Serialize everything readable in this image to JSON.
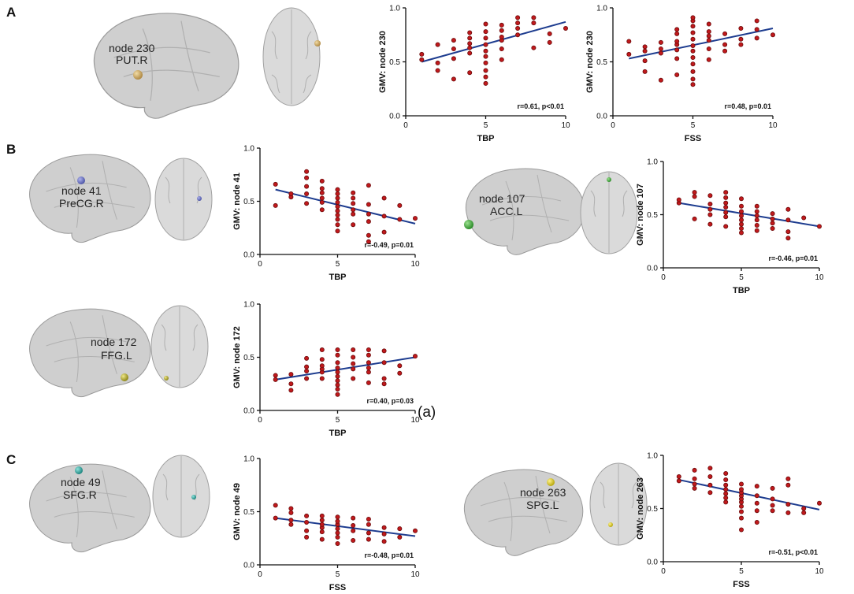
{
  "panels": {
    "A": "A",
    "B": "B",
    "C": "C"
  },
  "subfigure_label": "(a)",
  "brain_figures": [
    {
      "id": "b230",
      "node": "node 230",
      "region": "PUT.R",
      "color": "#d2b070"
    },
    {
      "id": "b41",
      "node": "node 41",
      "region": "PreCG.R",
      "color": "#7f86cc"
    },
    {
      "id": "b107",
      "node": "node 107",
      "region": "ACC.L",
      "color": "#55b24f"
    },
    {
      "id": "b172",
      "node": "node 172",
      "region": "FFG.L",
      "color": "#c9bf3a"
    },
    {
      "id": "b49",
      "node": "node 49",
      "region": "SFG.R",
      "color": "#3fb3ad"
    },
    {
      "id": "b263",
      "node": "node 263",
      "region": "SPG.L",
      "color": "#e2d42d"
    }
  ],
  "colors": {
    "point": "#c0191c",
    "fit": "#1d3c8f"
  },
  "chart_data": [
    {
      "id": "c1",
      "type": "scatter",
      "panel": "A",
      "xlabel": "TBP",
      "ylabel": "GMV: node 230",
      "xlim": [
        0,
        10
      ],
      "ylim": [
        0,
        1
      ],
      "xticks": [
        0,
        5,
        10
      ],
      "yticks": [
        0.0,
        0.5,
        1.0
      ],
      "stat": "r=0.61, p<0.01",
      "fit": [
        [
          1,
          0.5
        ],
        [
          10,
          0.87
        ]
      ],
      "points": [
        [
          1,
          0.52
        ],
        [
          1,
          0.57
        ],
        [
          2,
          0.42
        ],
        [
          2,
          0.49
        ],
        [
          2,
          0.66
        ],
        [
          3,
          0.34
        ],
        [
          3,
          0.53
        ],
        [
          3,
          0.62
        ],
        [
          3,
          0.7
        ],
        [
          4,
          0.4
        ],
        [
          4,
          0.58
        ],
        [
          4,
          0.63
        ],
        [
          4,
          0.67
        ],
        [
          4,
          0.72
        ],
        [
          4,
          0.77
        ],
        [
          5,
          0.3
        ],
        [
          5,
          0.36
        ],
        [
          5,
          0.42
        ],
        [
          5,
          0.49
        ],
        [
          5,
          0.55
        ],
        [
          5,
          0.6
        ],
        [
          5,
          0.66
        ],
        [
          5,
          0.72
        ],
        [
          5,
          0.78
        ],
        [
          5,
          0.85
        ],
        [
          6,
          0.52
        ],
        [
          6,
          0.62
        ],
        [
          6,
          0.7
        ],
        [
          6,
          0.73
        ],
        [
          6,
          0.79
        ],
        [
          6,
          0.84
        ],
        [
          7,
          0.75
        ],
        [
          7,
          0.81
        ],
        [
          7,
          0.86
        ],
        [
          7,
          0.91
        ],
        [
          8,
          0.63
        ],
        [
          8,
          0.86
        ],
        [
          8,
          0.91
        ],
        [
          9,
          0.68
        ],
        [
          9,
          0.76
        ],
        [
          10,
          0.81
        ]
      ]
    },
    {
      "id": "c2",
      "type": "scatter",
      "panel": "A",
      "xlabel": "FSS",
      "ylabel": "GMV: node 230",
      "xlim": [
        0,
        10
      ],
      "ylim": [
        0,
        1
      ],
      "xticks": [
        0,
        5,
        10
      ],
      "yticks": [
        0.0,
        0.5,
        1.0
      ],
      "stat": "r=0.48, p=0.01",
      "fit": [
        [
          1,
          0.53
        ],
        [
          10,
          0.81
        ]
      ],
      "points": [
        [
          1,
          0.57
        ],
        [
          1,
          0.69
        ],
        [
          2,
          0.41
        ],
        [
          2,
          0.51
        ],
        [
          2,
          0.6
        ],
        [
          2,
          0.64
        ],
        [
          3,
          0.33
        ],
        [
          3,
          0.58
        ],
        [
          3,
          0.62
        ],
        [
          3,
          0.68
        ],
        [
          4,
          0.38
        ],
        [
          4,
          0.53
        ],
        [
          4,
          0.61
        ],
        [
          4,
          0.66
        ],
        [
          4,
          0.69
        ],
        [
          4,
          0.76
        ],
        [
          4,
          0.8
        ],
        [
          5,
          0.29
        ],
        [
          5,
          0.34
        ],
        [
          5,
          0.41
        ],
        [
          5,
          0.48
        ],
        [
          5,
          0.54
        ],
        [
          5,
          0.6
        ],
        [
          5,
          0.65
        ],
        [
          5,
          0.71
        ],
        [
          5,
          0.77
        ],
        [
          5,
          0.83
        ],
        [
          5,
          0.88
        ],
        [
          5,
          0.91
        ],
        [
          6,
          0.52
        ],
        [
          6,
          0.62
        ],
        [
          6,
          0.7
        ],
        [
          6,
          0.74
        ],
        [
          6,
          0.78
        ],
        [
          6,
          0.85
        ],
        [
          7,
          0.6
        ],
        [
          7,
          0.66
        ],
        [
          7,
          0.76
        ],
        [
          8,
          0.66
        ],
        [
          8,
          0.71
        ],
        [
          8,
          0.81
        ],
        [
          9,
          0.72
        ],
        [
          9,
          0.8
        ],
        [
          9,
          0.88
        ],
        [
          10,
          0.75
        ]
      ]
    },
    {
      "id": "c3",
      "type": "scatter",
      "panel": "B",
      "xlabel": "TBP",
      "ylabel": "GMV: node 41",
      "xlim": [
        0,
        10
      ],
      "ylim": [
        0,
        1
      ],
      "xticks": [
        0,
        5,
        10
      ],
      "yticks": [
        0.0,
        0.5,
        1.0
      ],
      "stat": "r=-0.49, p=0.01",
      "fit": [
        [
          1,
          0.61
        ],
        [
          10,
          0.29
        ]
      ],
      "points": [
        [
          1,
          0.46
        ],
        [
          1,
          0.66
        ],
        [
          2,
          0.54
        ],
        [
          2,
          0.57
        ],
        [
          3,
          0.48
        ],
        [
          3,
          0.57
        ],
        [
          3,
          0.64
        ],
        [
          3,
          0.72
        ],
        [
          3,
          0.78
        ],
        [
          4,
          0.42
        ],
        [
          4,
          0.49
        ],
        [
          4,
          0.53
        ],
        [
          4,
          0.58
        ],
        [
          4,
          0.62
        ],
        [
          4,
          0.69
        ],
        [
          5,
          0.22
        ],
        [
          5,
          0.28
        ],
        [
          5,
          0.33
        ],
        [
          5,
          0.37
        ],
        [
          5,
          0.41
        ],
        [
          5,
          0.45
        ],
        [
          5,
          0.49
        ],
        [
          5,
          0.53
        ],
        [
          5,
          0.57
        ],
        [
          5,
          0.61
        ],
        [
          6,
          0.28
        ],
        [
          6,
          0.38
        ],
        [
          6,
          0.42
        ],
        [
          6,
          0.48
        ],
        [
          6,
          0.53
        ],
        [
          6,
          0.58
        ],
        [
          7,
          0.12
        ],
        [
          7,
          0.18
        ],
        [
          7,
          0.31
        ],
        [
          7,
          0.38
        ],
        [
          7,
          0.47
        ],
        [
          7,
          0.65
        ],
        [
          8,
          0.21
        ],
        [
          8,
          0.36
        ],
        [
          8,
          0.53
        ],
        [
          9,
          0.33
        ],
        [
          9,
          0.46
        ],
        [
          10,
          0.34
        ]
      ]
    },
    {
      "id": "c4",
      "type": "scatter",
      "panel": "B",
      "xlabel": "TBP",
      "ylabel": "GMV: node 107",
      "xlim": [
        0,
        10
      ],
      "ylim": [
        0,
        1
      ],
      "xticks": [
        0,
        5,
        10
      ],
      "yticks": [
        0.0,
        0.5,
        1.0
      ],
      "stat": "r=-0.46, p=0.01",
      "fit": [
        [
          1,
          0.61
        ],
        [
          10,
          0.39
        ]
      ],
      "points": [
        [
          1,
          0.61
        ],
        [
          1,
          0.64
        ],
        [
          2,
          0.46
        ],
        [
          2,
          0.67
        ],
        [
          2,
          0.71
        ],
        [
          3,
          0.41
        ],
        [
          3,
          0.5
        ],
        [
          3,
          0.55
        ],
        [
          3,
          0.6
        ],
        [
          3,
          0.68
        ],
        [
          4,
          0.39
        ],
        [
          4,
          0.48
        ],
        [
          4,
          0.52
        ],
        [
          4,
          0.57
        ],
        [
          4,
          0.61
        ],
        [
          4,
          0.66
        ],
        [
          4,
          0.71
        ],
        [
          5,
          0.33
        ],
        [
          5,
          0.37
        ],
        [
          5,
          0.41
        ],
        [
          5,
          0.45
        ],
        [
          5,
          0.49
        ],
        [
          5,
          0.53
        ],
        [
          5,
          0.58
        ],
        [
          5,
          0.65
        ],
        [
          6,
          0.35
        ],
        [
          6,
          0.4
        ],
        [
          6,
          0.45
        ],
        [
          6,
          0.49
        ],
        [
          6,
          0.53
        ],
        [
          6,
          0.58
        ],
        [
          7,
          0.37
        ],
        [
          7,
          0.42
        ],
        [
          7,
          0.46
        ],
        [
          7,
          0.51
        ],
        [
          8,
          0.28
        ],
        [
          8,
          0.34
        ],
        [
          8,
          0.45
        ],
        [
          8,
          0.55
        ],
        [
          9,
          0.47
        ],
        [
          10,
          0.39
        ]
      ]
    },
    {
      "id": "c5",
      "type": "scatter",
      "panel": "B",
      "xlabel": "TBP",
      "ylabel": "GMV: node 172",
      "xlim": [
        0,
        10
      ],
      "ylim": [
        0,
        1
      ],
      "xticks": [
        0,
        5,
        10
      ],
      "yticks": [
        0.0,
        0.5,
        1.0
      ],
      "stat": "r=0.40, p=0.03",
      "fit": [
        [
          1,
          0.29
        ],
        [
          10,
          0.5
        ]
      ],
      "points": [
        [
          1,
          0.29
        ],
        [
          1,
          0.33
        ],
        [
          2,
          0.19
        ],
        [
          2,
          0.25
        ],
        [
          2,
          0.34
        ],
        [
          3,
          0.3
        ],
        [
          3,
          0.37
        ],
        [
          3,
          0.41
        ],
        [
          3,
          0.49
        ],
        [
          4,
          0.3
        ],
        [
          4,
          0.36
        ],
        [
          4,
          0.39
        ],
        [
          4,
          0.42
        ],
        [
          4,
          0.48
        ],
        [
          4,
          0.57
        ],
        [
          5,
          0.15
        ],
        [
          5,
          0.2
        ],
        [
          5,
          0.24
        ],
        [
          5,
          0.28
        ],
        [
          5,
          0.32
        ],
        [
          5,
          0.36
        ],
        [
          5,
          0.4
        ],
        [
          5,
          0.45
        ],
        [
          5,
          0.52
        ],
        [
          5,
          0.57
        ],
        [
          6,
          0.3
        ],
        [
          6,
          0.39
        ],
        [
          6,
          0.44
        ],
        [
          6,
          0.5
        ],
        [
          6,
          0.57
        ],
        [
          7,
          0.26
        ],
        [
          7,
          0.36
        ],
        [
          7,
          0.4
        ],
        [
          7,
          0.45
        ],
        [
          7,
          0.52
        ],
        [
          7,
          0.57
        ],
        [
          8,
          0.25
        ],
        [
          8,
          0.3
        ],
        [
          8,
          0.45
        ],
        [
          8,
          0.56
        ],
        [
          9,
          0.35
        ],
        [
          9,
          0.42
        ],
        [
          10,
          0.51
        ]
      ]
    },
    {
      "id": "c6",
      "type": "scatter",
      "panel": "C",
      "xlabel": "FSS",
      "ylabel": "GMV: node 49",
      "xlim": [
        0,
        10
      ],
      "ylim": [
        0,
        1
      ],
      "xticks": [
        0,
        5,
        10
      ],
      "yticks": [
        0.0,
        0.5,
        1.0
      ],
      "stat": "r=-0.48, p=0.01",
      "fit": [
        [
          1,
          0.44
        ],
        [
          10,
          0.27
        ]
      ],
      "points": [
        [
          1,
          0.44
        ],
        [
          1,
          0.56
        ],
        [
          2,
          0.38
        ],
        [
          2,
          0.42
        ],
        [
          2,
          0.49
        ],
        [
          2,
          0.53
        ],
        [
          3,
          0.26
        ],
        [
          3,
          0.32
        ],
        [
          3,
          0.4
        ],
        [
          3,
          0.46
        ],
        [
          4,
          0.24
        ],
        [
          4,
          0.31
        ],
        [
          4,
          0.35
        ],
        [
          4,
          0.38
        ],
        [
          4,
          0.42
        ],
        [
          4,
          0.46
        ],
        [
          5,
          0.2
        ],
        [
          5,
          0.26
        ],
        [
          5,
          0.3
        ],
        [
          5,
          0.34
        ],
        [
          5,
          0.38
        ],
        [
          5,
          0.41
        ],
        [
          5,
          0.45
        ],
        [
          6,
          0.23
        ],
        [
          6,
          0.32
        ],
        [
          6,
          0.37
        ],
        [
          6,
          0.44
        ],
        [
          7,
          0.24
        ],
        [
          7,
          0.3
        ],
        [
          7,
          0.38
        ],
        [
          7,
          0.43
        ],
        [
          8,
          0.22
        ],
        [
          8,
          0.29
        ],
        [
          8,
          0.35
        ],
        [
          9,
          0.26
        ],
        [
          9,
          0.34
        ],
        [
          10,
          0.32
        ]
      ]
    },
    {
      "id": "c7",
      "type": "scatter",
      "panel": "C",
      "xlabel": "FSS",
      "ylabel": "GMV: node 263",
      "xlim": [
        0,
        10
      ],
      "ylim": [
        0,
        1
      ],
      "xticks": [
        0,
        5,
        10
      ],
      "yticks": [
        0.0,
        0.5,
        1.0
      ],
      "stat": "r=-0.51, p<0.01",
      "fit": [
        [
          1,
          0.77
        ],
        [
          10,
          0.49
        ]
      ],
      "points": [
        [
          1,
          0.76
        ],
        [
          1,
          0.8
        ],
        [
          2,
          0.69
        ],
        [
          2,
          0.73
        ],
        [
          2,
          0.78
        ],
        [
          2,
          0.86
        ],
        [
          3,
          0.65
        ],
        [
          3,
          0.72
        ],
        [
          3,
          0.8
        ],
        [
          3,
          0.88
        ],
        [
          4,
          0.56
        ],
        [
          4,
          0.6
        ],
        [
          4,
          0.64
        ],
        [
          4,
          0.68
        ],
        [
          4,
          0.72
        ],
        [
          4,
          0.77
        ],
        [
          4,
          0.83
        ],
        [
          5,
          0.3
        ],
        [
          5,
          0.41
        ],
        [
          5,
          0.47
        ],
        [
          5,
          0.52
        ],
        [
          5,
          0.56
        ],
        [
          5,
          0.59
        ],
        [
          5,
          0.62
        ],
        [
          5,
          0.65
        ],
        [
          5,
          0.68
        ],
        [
          5,
          0.73
        ],
        [
          6,
          0.37
        ],
        [
          6,
          0.48
        ],
        [
          6,
          0.55
        ],
        [
          6,
          0.62
        ],
        [
          6,
          0.71
        ],
        [
          7,
          0.48
        ],
        [
          7,
          0.53
        ],
        [
          7,
          0.59
        ],
        [
          7,
          0.69
        ],
        [
          8,
          0.46
        ],
        [
          8,
          0.54
        ],
        [
          8,
          0.72
        ],
        [
          8,
          0.78
        ],
        [
          9,
          0.46
        ],
        [
          9,
          0.5
        ],
        [
          10,
          0.55
        ]
      ]
    }
  ]
}
